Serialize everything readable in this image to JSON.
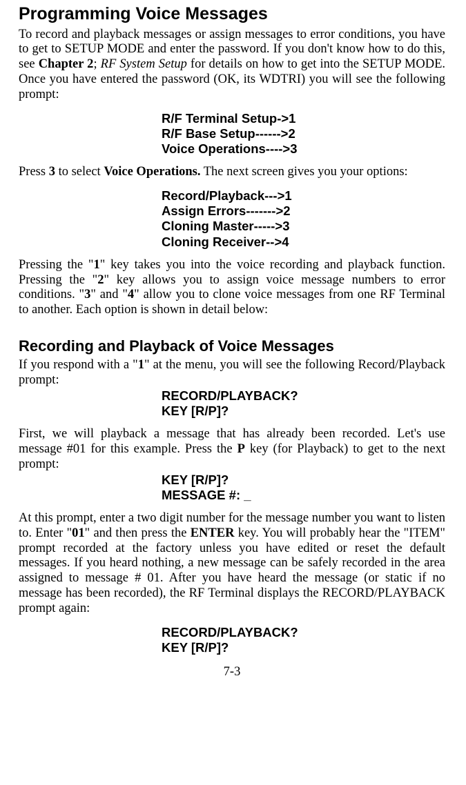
{
  "heading1": "Programming Voice Messages",
  "para1_before": "To record and playback messages or assign messages to error conditions, you have to get to SETUP MODE and enter the password. If you don't know how to do this, see ",
  "para1_bold": "Chapter 2",
  "para1_mid": "; ",
  "para1_italic": "RF System Setup",
  "para1_after": " for details on how to get into the SETUP MODE.  Once you have entered the password (OK, its WDTRI) you will see the following prompt:",
  "menu1": {
    "l1": "R/F Terminal Setup->1",
    "l2": "R/F Base Setup------>2",
    "l3": "Voice Operations---->3"
  },
  "para2_before": "Press ",
  "para2_bold1": "3",
  "para2_mid": " to select ",
  "para2_bold2": "Voice Operations.",
  "para2_after": " The next screen gives you your options:",
  "menu2": {
    "l1": "Record/Playback--->1",
    "l2": "Assign Errors------->2",
    "l3": "Cloning Master----->3",
    "l4": "Cloning Receiver-->4"
  },
  "para3_a": "Pressing the \"",
  "para3_b1": "1",
  "para3_b": "\" key takes you into the voice recording and playback function. Pressing the \"",
  "para3_b2": "2",
  "para3_c": "\" key allows you to assign voice message numbers to error conditions. \"",
  "para3_b3": "3",
  "para3_d": "\" and \"",
  "para3_b4": "4",
  "para3_e": "\" allow you to clone voice messages from one RF Terminal to another.  Each option is shown in detail below:",
  "heading2": "Recording and Playback of Voice Messages",
  "para4_before": "If you respond with a \"",
  "para4_bold": "1",
  "para4_after": "\" at the menu, you will see the following Record/Playback prompt:",
  "menu3": {
    "l1": "RECORD/PLAYBACK?",
    "l2": "KEY [R/P]?"
  },
  "para5_before": "First, we will playback a message that has already been recorded. Let's use message #01 for this example. Press the ",
  "para5_bold": "P",
  "para5_after": " key (for Playback) to get to the next prompt:",
  "menu4": {
    "l1": "KEY [R/P]?",
    "l2": "MESSAGE #: _"
  },
  "para6_a": "At this prompt, enter a two digit number for the message number you want to listen to.  Enter \"",
  "para6_b1": "01",
  "para6_b": "\" and then press the ",
  "para6_b2": "ENTER",
  "para6_c": " key. You will probably hear the \"ITEM\" prompt recorded at the factory unless you have edited or reset the default messages. If you heard nothing, a new message can be safely recorded in the area assigned to message # 01. After you have heard the message (or static if no message has been recorded), the RF Terminal displays the RECORD/PLAYBACK prompt again:",
  "menu5": {
    "l1": "RECORD/PLAYBACK?",
    "l2": "KEY [R/P]?"
  },
  "pagenum": "7-3"
}
